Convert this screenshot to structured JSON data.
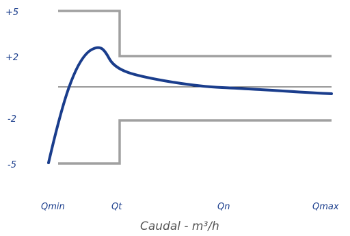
{
  "chart_data": {
    "type": "line",
    "title": "",
    "xlabel": "Caudal - m³/h",
    "ylabel": "",
    "x_ticks": [
      "Qmin",
      "Qt",
      "Qn",
      "Qmax"
    ],
    "y_ticks": [
      "+5",
      "+2",
      "-2",
      "-5"
    ],
    "ylim": [
      -5,
      5
    ],
    "grid": false,
    "legend": "none",
    "series": [
      {
        "role": "upper-tolerance-limit",
        "points": [
          [
            "Qmin",
            5
          ],
          [
            "Qt",
            5
          ],
          [
            "Qt",
            2
          ],
          [
            "Qmax",
            2
          ]
        ]
      },
      {
        "role": "lower-tolerance-limit",
        "points": [
          [
            "Qmin",
            -5
          ],
          [
            "Qt",
            -5
          ],
          [
            "Qt",
            -2
          ],
          [
            "Qmax",
            -2
          ]
        ]
      },
      {
        "role": "error-curve",
        "points": [
          [
            "Qmin",
            -5
          ],
          [
            "Qt",
            1.4
          ],
          [
            "Qn",
            0
          ],
          [
            "Qmax",
            -0.4
          ]
        ]
      }
    ],
    "colors": {
      "limits": "#a0a0a0",
      "curve": "#1a3d8c",
      "zero_line": "#333333",
      "labels": "#1a3d8c"
    }
  }
}
